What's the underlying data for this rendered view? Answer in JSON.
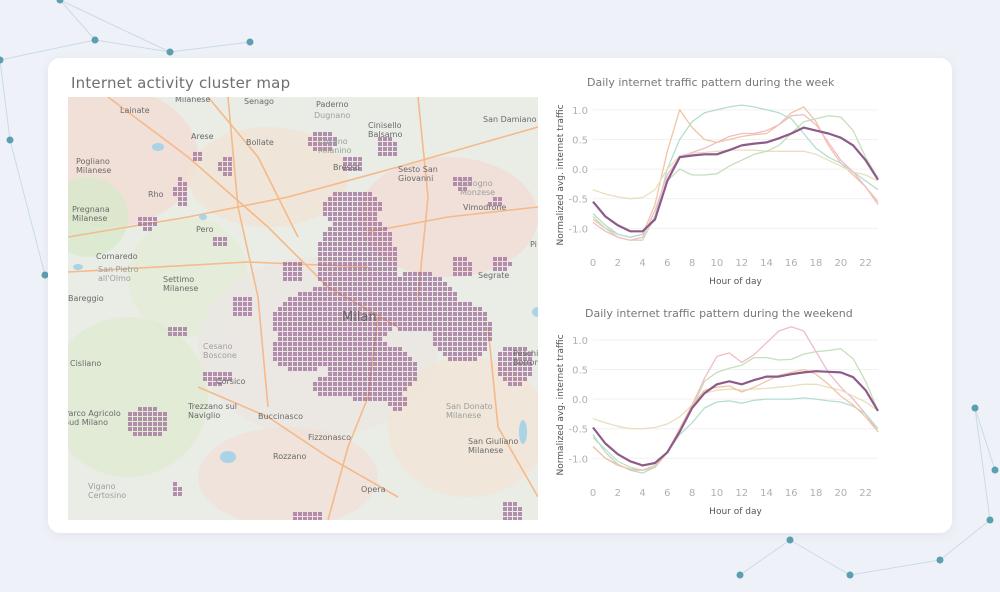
{
  "map": {
    "title": "Internet activity cluster map",
    "city_label": "Milan",
    "labels": [
      "Lainate",
      "Milanese",
      "Senago",
      "Paderno",
      "Dugnano",
      "San Damiano",
      "Arese",
      "Bollate",
      "Cinisello Balsamo",
      "Cusano Milanino",
      "Pogliano Milanese",
      "Rho",
      "Bresso",
      "Sesto San Giovanni",
      "Cologno Monzese",
      "Pregnana Milanese",
      "Pero",
      "Vimodrone",
      "Cornaredo",
      "San Pietro all'Olmo",
      "Settimo Milanese",
      "Bareggio",
      "Segrate",
      "Cisliano",
      "Cesano Boscone",
      "Corsico",
      "Peschiera Borromeo",
      "Trezzano sul Naviglio",
      "Buccinasco",
      "San Donato Milanese",
      "Parco Agricolo Sud Milano",
      "Rozzano",
      "Fizzonasco",
      "San Giuliano Milanese",
      "Vigano Certosino",
      "Opera",
      "Pi"
    ],
    "cluster_color": "#9c6a98"
  },
  "charts": [
    {
      "title": "Daily internet traffic pattern during the week",
      "chart_data": {
        "type": "line",
        "title": "Daily internet traffic pattern during the week",
        "xlabel": "Hour of day",
        "ylabel": "Normalized avg. internet traffic",
        "x": [
          0,
          1,
          2,
          3,
          4,
          5,
          6,
          7,
          8,
          9,
          10,
          11,
          12,
          13,
          14,
          15,
          16,
          17,
          18,
          19,
          20,
          21,
          22,
          23
        ],
        "xticks": [
          "0",
          "2",
          "4",
          "6",
          "8",
          "10",
          "12",
          "14",
          "16",
          "18",
          "20",
          "22"
        ],
        "yticks": [
          "1.0",
          "0.5",
          "0.0",
          "-0.5",
          "-1.0"
        ],
        "ylim": [
          -1.4,
          1.2
        ],
        "grid": true,
        "series": [
          {
            "color": "#f2c4a4",
            "values": [
              -0.85,
              -1.0,
              -1.1,
              -1.15,
              -1.1,
              -0.6,
              0.3,
              1.0,
              0.7,
              0.5,
              0.45,
              0.5,
              0.55,
              0.58,
              0.6,
              0.75,
              0.95,
              1.05,
              0.8,
              0.4,
              0.1,
              -0.1,
              -0.3,
              -0.55
            ]
          },
          {
            "color": "#b4ddd2",
            "values": [
              -0.75,
              -0.95,
              -1.1,
              -1.15,
              -1.1,
              -0.8,
              0.0,
              0.5,
              0.8,
              0.95,
              1.0,
              1.05,
              1.08,
              1.05,
              1.0,
              0.95,
              0.85,
              0.6,
              0.35,
              0.2,
              0.1,
              -0.05,
              -0.2,
              -0.35
            ]
          },
          {
            "color": "#e9dfbc",
            "values": [
              -0.35,
              -0.42,
              -0.47,
              -0.5,
              -0.48,
              -0.35,
              0.0,
              0.22,
              0.27,
              0.28,
              0.3,
              0.32,
              0.32,
              0.32,
              0.3,
              0.3,
              0.3,
              0.3,
              0.25,
              0.15,
              0.05,
              -0.05,
              -0.1,
              -0.2
            ]
          },
          {
            "color": "#c6dfba",
            "values": [
              -0.8,
              -1.0,
              -1.15,
              -1.2,
              -1.2,
              -0.8,
              -0.2,
              0.0,
              -0.1,
              -0.1,
              -0.08,
              0.05,
              0.15,
              0.25,
              0.3,
              0.4,
              0.6,
              0.8,
              0.85,
              0.9,
              0.88,
              0.65,
              0.2,
              -0.15
            ]
          },
          {
            "color": "#f0bcc6",
            "values": [
              -0.9,
              -1.05,
              -1.15,
              -1.2,
              -1.15,
              -0.7,
              -0.1,
              0.2,
              0.28,
              0.35,
              0.45,
              0.55,
              0.6,
              0.6,
              0.65,
              0.75,
              0.9,
              0.92,
              0.75,
              0.45,
              0.15,
              -0.05,
              -0.3,
              -0.6
            ]
          },
          {
            "color": "#8e5a8a",
            "highlight": true,
            "values": [
              -0.55,
              -0.8,
              -0.95,
              -1.05,
              -1.05,
              -0.85,
              -0.2,
              0.2,
              0.23,
              0.25,
              0.25,
              0.32,
              0.4,
              0.43,
              0.45,
              0.52,
              0.6,
              0.7,
              0.65,
              0.6,
              0.53,
              0.4,
              0.15,
              -0.18
            ]
          }
        ]
      }
    },
    {
      "title": "Daily internet traffic pattern during the weekend",
      "chart_data": {
        "type": "line",
        "title": "Daily internet traffic pattern during the weekend",
        "xlabel": "Hour of day",
        "ylabel": "Normalized avg. internet traffic",
        "x": [
          0,
          1,
          2,
          3,
          4,
          5,
          6,
          7,
          8,
          9,
          10,
          11,
          12,
          13,
          14,
          15,
          16,
          17,
          18,
          19,
          20,
          21,
          22,
          23
        ],
        "xticks": [
          "0",
          "2",
          "4",
          "6",
          "8",
          "10",
          "12",
          "14",
          "16",
          "18",
          "20",
          "22"
        ],
        "yticks": [
          "1.0",
          "0.5",
          "0.0",
          "-0.5",
          "-1.0"
        ],
        "ylim": [
          -1.4,
          1.2
        ],
        "grid": true,
        "series": [
          {
            "color": "#f0bcc6",
            "values": [
              -0.8,
              -1.0,
              -1.1,
              -1.2,
              -1.2,
              -1.15,
              -0.9,
              -0.5,
              -0.1,
              0.35,
              0.72,
              0.78,
              0.62,
              0.75,
              0.95,
              1.15,
              1.22,
              1.15,
              0.8,
              0.45,
              0.2,
              0.0,
              -0.25,
              -0.55
            ]
          },
          {
            "color": "#c6dfba",
            "values": [
              -0.65,
              -0.85,
              -1.05,
              -1.15,
              -1.2,
              -1.12,
              -0.9,
              -0.55,
              -0.15,
              0.3,
              0.45,
              0.52,
              0.57,
              0.7,
              0.7,
              0.66,
              0.67,
              0.76,
              0.8,
              0.82,
              0.85,
              0.68,
              0.3,
              -0.2
            ]
          },
          {
            "color": "#e9dfbc",
            "values": [
              -0.33,
              -0.4,
              -0.46,
              -0.5,
              -0.5,
              -0.48,
              -0.42,
              -0.3,
              -0.1,
              0.1,
              0.15,
              0.17,
              0.15,
              0.17,
              0.18,
              0.2,
              0.22,
              0.25,
              0.25,
              0.2,
              0.15,
              0.05,
              -0.05,
              -0.2
            ]
          },
          {
            "color": "#b4ddd2",
            "values": [
              -0.6,
              -0.9,
              -1.1,
              -1.2,
              -1.25,
              -1.15,
              -0.9,
              -0.6,
              -0.4,
              -0.15,
              -0.05,
              -0.03,
              -0.07,
              -0.02,
              0.0,
              0.0,
              0.0,
              0.02,
              0.0,
              -0.03,
              -0.05,
              -0.12,
              -0.25,
              -0.5
            ]
          },
          {
            "color": "#f2c4a4",
            "values": [
              -0.8,
              -1.0,
              -1.12,
              -1.18,
              -1.2,
              -1.15,
              -0.9,
              -0.5,
              -0.1,
              0.15,
              0.2,
              0.22,
              0.12,
              0.2,
              0.3,
              0.4,
              0.45,
              0.5,
              0.42,
              0.25,
              0.05,
              -0.1,
              -0.3,
              -0.55
            ]
          },
          {
            "color": "#8e5a8a",
            "highlight": true,
            "values": [
              -0.48,
              -0.75,
              -0.93,
              -1.05,
              -1.12,
              -1.08,
              -0.9,
              -0.55,
              -0.15,
              0.1,
              0.25,
              0.3,
              0.25,
              0.32,
              0.38,
              0.38,
              0.42,
              0.45,
              0.47,
              0.46,
              0.45,
              0.37,
              0.15,
              -0.2
            ]
          }
        ]
      }
    }
  ]
}
